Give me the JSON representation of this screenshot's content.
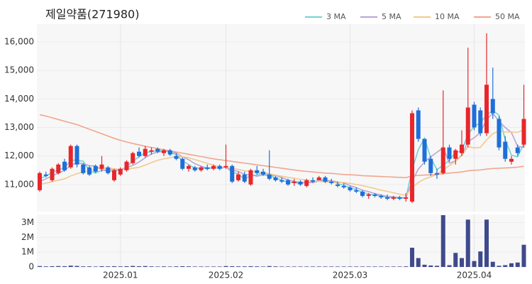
{
  "chart_data": {
    "type": "candlestick",
    "title": "제일약품(271980)",
    "categories": [
      null,
      null,
      null,
      null,
      null,
      null,
      null,
      null,
      null,
      null,
      null,
      null,
      null,
      "2025.01",
      null,
      null,
      null,
      null,
      null,
      null,
      null,
      null,
      null,
      null,
      null,
      null,
      null,
      null,
      null,
      null,
      "2025.02",
      null,
      null,
      null,
      null,
      null,
      null,
      null,
      null,
      null,
      null,
      null,
      null,
      null,
      null,
      null,
      null,
      null,
      null,
      null,
      "2025.03",
      null,
      null,
      null,
      null,
      null,
      null,
      null,
      null,
      null,
      null,
      null,
      null,
      null,
      null,
      null,
      null,
      null,
      null,
      null,
      "2025.04",
      null,
      null,
      null,
      null,
      null,
      null,
      null,
      null
    ],
    "ohlc": [
      [
        10800,
        11450,
        10750,
        11400
      ],
      [
        11350,
        11450,
        11250,
        11300
      ],
      [
        11150,
        11600,
        11100,
        11550
      ],
      [
        11400,
        11750,
        11350,
        11700
      ],
      [
        11800,
        11900,
        11450,
        11500
      ],
      [
        11600,
        12400,
        11550,
        12350
      ],
      [
        12350,
        12400,
        11600,
        11700
      ],
      [
        11700,
        11750,
        11350,
        11400
      ],
      [
        11600,
        11650,
        11300,
        11350
      ],
      [
        11650,
        11700,
        11400,
        11450
      ],
      [
        11550,
        12000,
        11450,
        11700
      ],
      [
        11600,
        11650,
        11350,
        11400
      ],
      [
        11150,
        11550,
        11100,
        11500
      ],
      [
        11350,
        11600,
        11300,
        11550
      ],
      [
        11500,
        11850,
        11450,
        11800
      ],
      [
        11750,
        12150,
        11700,
        12100
      ],
      [
        12150,
        12300,
        11950,
        12000
      ],
      [
        12000,
        12350,
        11950,
        12250
      ],
      [
        12150,
        12300,
        12050,
        12200
      ],
      [
        12250,
        12300,
        12100,
        12150
      ],
      [
        12100,
        12250,
        12000,
        12200
      ],
      [
        12200,
        12250,
        12000,
        12050
      ],
      [
        12000,
        12100,
        11850,
        11900
      ],
      [
        11900,
        11950,
        11500,
        11550
      ],
      [
        11550,
        11700,
        11450,
        11650
      ],
      [
        11600,
        11650,
        11450,
        11500
      ],
      [
        11500,
        11650,
        11450,
        11600
      ],
      [
        11600,
        11700,
        11500,
        11550
      ],
      [
        11550,
        11700,
        11500,
        11650
      ],
      [
        11650,
        11700,
        11500,
        11550
      ],
      [
        11600,
        12400,
        11550,
        11650
      ],
      [
        11650,
        11700,
        11050,
        11100
      ],
      [
        11150,
        11450,
        11100,
        11350
      ],
      [
        11350,
        11450,
        11050,
        11100
      ],
      [
        11000,
        11550,
        10950,
        11500
      ],
      [
        11500,
        11650,
        11350,
        11400
      ],
      [
        11450,
        11550,
        11300,
        11350
      ],
      [
        11350,
        12200,
        11150,
        11200
      ],
      [
        11250,
        11300,
        11100,
        11150
      ],
      [
        11150,
        11250,
        11050,
        11100
      ],
      [
        11150,
        11200,
        10950,
        11000
      ],
      [
        11050,
        11200,
        10950,
        11100
      ],
      [
        11100,
        11150,
        10950,
        11000
      ],
      [
        10950,
        11200,
        10900,
        11150
      ],
      [
        11150,
        11250,
        11050,
        11100
      ],
      [
        11150,
        11300,
        11150,
        11250
      ],
      [
        11250,
        11300,
        11050,
        11100
      ],
      [
        11100,
        11200,
        11000,
        11050
      ],
      [
        11000,
        11100,
        10900,
        10950
      ],
      [
        10950,
        11050,
        10850,
        10900
      ],
      [
        10900,
        10950,
        10750,
        10800
      ],
      [
        10800,
        10900,
        10700,
        10750
      ],
      [
        10750,
        10800,
        10550,
        10600
      ],
      [
        10600,
        10700,
        10500,
        10650
      ],
      [
        10650,
        10700,
        10550,
        10600
      ],
      [
        10600,
        10650,
        10500,
        10550
      ],
      [
        10550,
        10650,
        10450,
        10500
      ],
      [
        10500,
        10600,
        10450,
        10550
      ],
      [
        10550,
        10600,
        10450,
        10500
      ],
      [
        10500,
        10700,
        10400,
        10550
      ],
      [
        10400,
        13600,
        10350,
        13500
      ],
      [
        13600,
        13700,
        12500,
        12600
      ],
      [
        12600,
        12600,
        11700,
        11800
      ],
      [
        11900,
        12000,
        11300,
        11400
      ],
      [
        11400,
        11550,
        11200,
        11350
      ],
      [
        11400,
        14300,
        11350,
        12300
      ],
      [
        12300,
        12400,
        11800,
        11900
      ],
      [
        11900,
        12250,
        11700,
        12200
      ],
      [
        12100,
        12900,
        12000,
        12400
      ],
      [
        12400,
        15800,
        12300,
        13700
      ],
      [
        13800,
        13900,
        12900,
        13000
      ],
      [
        13600,
        13700,
        12700,
        12800
      ],
      [
        12800,
        16300,
        12700,
        14500
      ],
      [
        14000,
        15100,
        13300,
        13500
      ],
      [
        13300,
        13400,
        12200,
        12300
      ],
      [
        12500,
        12700,
        11800,
        11900
      ],
      [
        11800,
        12000,
        11700,
        11900
      ],
      [
        12300,
        12400,
        12000,
        12100
      ],
      [
        12400,
        14500,
        12300,
        13300
      ]
    ],
    "volume": [
      60000,
      40000,
      50000,
      60000,
      50000,
      90000,
      70000,
      40000,
      40000,
      30000,
      50000,
      40000,
      50000,
      40000,
      50000,
      70000,
      50000,
      60000,
      40000,
      30000,
      40000,
      30000,
      40000,
      50000,
      40000,
      30000,
      30000,
      30000,
      30000,
      30000,
      60000,
      50000,
      40000,
      40000,
      50000,
      40000,
      30000,
      60000,
      40000,
      30000,
      30000,
      30000,
      30000,
      30000,
      30000,
      30000,
      30000,
      30000,
      30000,
      30000,
      30000,
      30000,
      30000,
      30000,
      30000,
      30000,
      30000,
      30000,
      30000,
      40000,
      1300000,
      600000,
      150000,
      100000,
      80000,
      3500000,
      120000,
      950000,
      600000,
      3200000,
      400000,
      1050000,
      3200000,
      350000,
      80000,
      120000,
      250000,
      300000,
      1500000
    ],
    "up_color": "#e8262b",
    "down_color": "#1e6fd9",
    "volume_color": "#3f4a8c",
    "series": [
      {
        "name": "3 MA",
        "color": "#6fd3d3",
        "values": [
          11200,
          11300,
          11420,
          11520,
          11580,
          11850,
          11850,
          11820,
          11480,
          11400,
          11500,
          11520,
          11530,
          11480,
          11620,
          11820,
          11970,
          12120,
          12150,
          12200,
          12180,
          12130,
          12050,
          11830,
          11700,
          11570,
          11580,
          11550,
          11600,
          11580,
          11620,
          11430,
          11370,
          11180,
          11320,
          11330,
          11420,
          11320,
          11230,
          11150,
          11080,
          11070,
          11030,
          11080,
          11080,
          11170,
          11150,
          11130,
          11030,
          10970,
          10880,
          10820,
          10720,
          10670,
          10620,
          10600,
          10550,
          10530,
          10520,
          10530,
          11520,
          12220,
          12630,
          11930,
          11520,
          11680,
          11850,
          12130,
          12170,
          12770,
          13030,
          13170,
          13430,
          13600,
          13430,
          12570,
          12030,
          11970,
          12430
        ]
      },
      {
        "name": "5 MA",
        "color": "#b9a3d6",
        "values": [
          11100,
          11200,
          11300,
          11400,
          11490,
          11680,
          11760,
          11730,
          11660,
          11650,
          11520,
          11460,
          11480,
          11520,
          11590,
          11670,
          11790,
          11940,
          12070,
          12140,
          12160,
          12170,
          12100,
          11970,
          11870,
          11730,
          11640,
          11570,
          11590,
          11570,
          11600,
          11500,
          11460,
          11350,
          11340,
          11290,
          11340,
          11310,
          11320,
          11240,
          11160,
          11110,
          11070,
          11070,
          11070,
          11120,
          11120,
          11130,
          11090,
          11050,
          10960,
          10890,
          10800,
          10750,
          10680,
          10630,
          10580,
          10570,
          10540,
          10530,
          11120,
          11540,
          11790,
          11970,
          12130,
          12290,
          11750,
          11830,
          12030,
          12500,
          12640,
          12820,
          13280,
          13500,
          13220,
          13000,
          12820,
          12340,
          12300
        ]
      },
      {
        "name": "10 MA",
        "color": "#f3c98c",
        "values": [
          11000,
          11050,
          11100,
          11150,
          11200,
          11300,
          11380,
          11440,
          11490,
          11540,
          11570,
          11580,
          11550,
          11530,
          11540,
          11570,
          11600,
          11680,
          11770,
          11850,
          11900,
          11940,
          11980,
          11970,
          11940,
          11870,
          11810,
          11740,
          11680,
          11620,
          11600,
          11560,
          11530,
          11480,
          11460,
          11440,
          11420,
          11380,
          11330,
          11290,
          11250,
          11220,
          11180,
          11160,
          11120,
          11110,
          11090,
          11080,
          11070,
          11070,
          11040,
          11000,
          10960,
          10910,
          10860,
          10800,
          10760,
          10710,
          10660,
          10620,
          10890,
          11070,
          11190,
          11270,
          11350,
          11520,
          11660,
          11820,
          12010,
          12330,
          12280,
          12300,
          12570,
          12780,
          12880,
          12840,
          12840,
          12830,
          12920
        ]
      },
      {
        "name": "50 MA",
        "color": "#f2a58c",
        "values": [
          13450,
          13400,
          13340,
          13280,
          13220,
          13160,
          13100,
          13020,
          12940,
          12860,
          12780,
          12700,
          12620,
          12550,
          12490,
          12440,
          12390,
          12340,
          12300,
          12260,
          12220,
          12180,
          12140,
          12100,
          12060,
          12020,
          11980,
          11940,
          11900,
          11870,
          11840,
          11810,
          11780,
          11750,
          11720,
          11690,
          11660,
          11630,
          11600,
          11570,
          11540,
          11510,
          11480,
          11460,
          11440,
          11420,
          11400,
          11390,
          11370,
          11350,
          11340,
          11330,
          11310,
          11300,
          11290,
          11280,
          11270,
          11260,
          11250,
          11240,
          11300,
          11320,
          11330,
          11340,
          11350,
          11380,
          11400,
          11420,
          11440,
          11480,
          11500,
          11510,
          11540,
          11560,
          11570,
          11580,
          11590,
          11610,
          11640
        ]
      }
    ],
    "ylim": [
      10050,
      16625
    ],
    "yticks": [
      {
        "value": 11000,
        "label": "11,000"
      },
      {
        "value": 12000,
        "label": "12,000"
      },
      {
        "value": 13000,
        "label": "13,000"
      },
      {
        "value": 14000,
        "label": "14,000"
      },
      {
        "value": 15000,
        "label": "15,000"
      },
      {
        "value": 16000,
        "label": "16,000"
      }
    ],
    "vlim": [
      0,
      3550000
    ],
    "vticks": [
      0,
      {
        "value": 1000000,
        "label": "1M"
      },
      {
        "value": 2000000,
        "label": "2M"
      },
      {
        "value": 3000000,
        "label": "3M"
      }
    ],
    "grid": true
  }
}
